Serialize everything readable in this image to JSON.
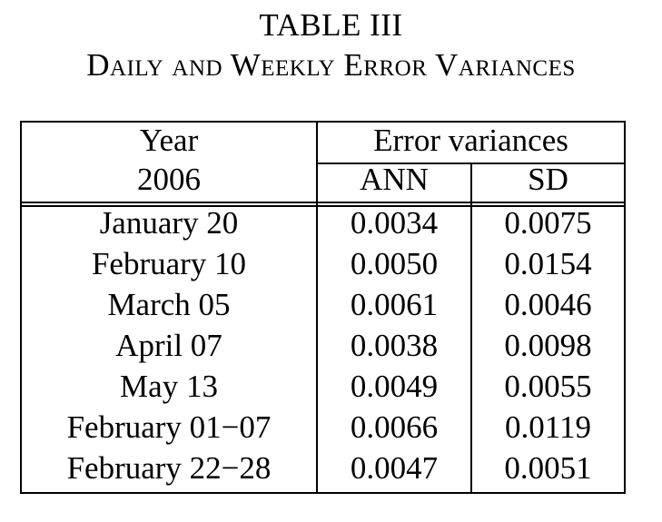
{
  "caption": {
    "label": "TABLE III",
    "title": "Daily and Weekly Error Variances"
  },
  "table": {
    "header": {
      "col1_line1": "Year",
      "col1_line2": "2006",
      "group": "Error variances",
      "sub1": "ANN",
      "sub2": "SD"
    },
    "rows": [
      {
        "date": "January 20",
        "ann": "0.0034",
        "sd": "0.0075"
      },
      {
        "date": "February 10",
        "ann": "0.0050",
        "sd": "0.0154"
      },
      {
        "date": "March 05",
        "ann": "0.0061",
        "sd": "0.0046"
      },
      {
        "date": "April 07",
        "ann": "0.0038",
        "sd": "0.0098"
      },
      {
        "date": "May 13",
        "ann": "0.0049",
        "sd": "0.0055"
      },
      {
        "date": "February 01−07",
        "ann": "0.0066",
        "sd": "0.0119"
      },
      {
        "date": "February 22−28",
        "ann": "0.0047",
        "sd": "0.0051"
      }
    ]
  }
}
